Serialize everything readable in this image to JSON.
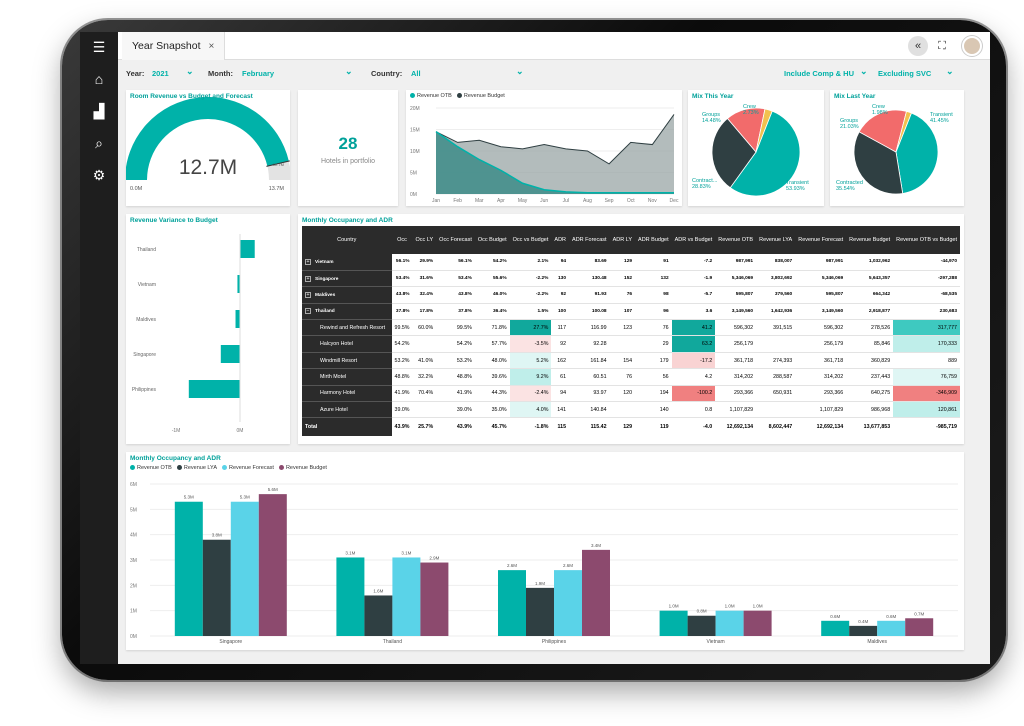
{
  "tab": {
    "title": "Year Snapshot",
    "close": "×"
  },
  "topbar": {
    "collapse": "«",
    "expand": "⛶"
  },
  "filters": {
    "year_label": "Year:",
    "year_value": "2021",
    "month_label": "Month:",
    "month_value": "February",
    "country_label": "Country:",
    "country_value": "All",
    "comp_value": "Include Comp & HU",
    "svc_value": "Excluding SVC"
  },
  "gauge": {
    "title": "Room Revenue vs Budget and Forecast",
    "value_label": "12.7M",
    "min_label": "0.0M",
    "max_label": "13.7M",
    "marker_label": "12.7M",
    "value": 12.7,
    "max": 13.7,
    "color": "#00b2a9"
  },
  "kpi": {
    "value": "28",
    "label": "Hotels in portfolio"
  },
  "area": {
    "legend": [
      "Revenue OTB",
      "Revenue Budget"
    ],
    "yticks": [
      "20M",
      "15M",
      "10M",
      "5M",
      "0M"
    ],
    "months": [
      "Jan",
      "Feb",
      "Mar",
      "Apr",
      "May",
      "Jun",
      "Jul",
      "Aug",
      "Sep",
      "Oct",
      "Nov",
      "Dec"
    ]
  },
  "mix_this": {
    "title": "Mix This Year",
    "labels": [
      {
        "name": "Crew",
        "pct": "2.73%"
      },
      {
        "name": "Groups",
        "pct": "14.48%"
      },
      {
        "name": "Contract...",
        "pct": "28.83%"
      },
      {
        "name": "Transient",
        "pct": "53.93%"
      }
    ],
    "slices": [
      53.93,
      28.83,
      14.48,
      2.73
    ]
  },
  "mix_last": {
    "title": "Mix Last Year",
    "labels": [
      {
        "name": "Crew",
        "pct": "1.98%"
      },
      {
        "name": "Transient",
        "pct": "41.45%"
      },
      {
        "name": "Groups",
        "pct": "21.03%"
      },
      {
        "name": "Contracted",
        "pct": "35.54%"
      }
    ],
    "slices": [
      41.45,
      35.54,
      21.03,
      1.98
    ]
  },
  "variance": {
    "title": "Revenue Variance to Budget",
    "countries": [
      "Thailand",
      "Vietnam",
      "Maldives",
      "Singapore",
      "Philippines"
    ],
    "xticks": [
      "-1M",
      "0M"
    ]
  },
  "table": {
    "title": "Monthly Occupancy and ADR",
    "headers": [
      "Country",
      "Occ",
      "Occ LY",
      "Occ Forecast",
      "Occ Budget",
      "Occ vs Budget",
      "ADR",
      "ADR Forecast",
      "ADR LY",
      "ADR Budget",
      "ADR vs Budget",
      "Revenue OTB",
      "Revenue LYA",
      "Revenue Forecast",
      "Revenue Budget",
      "Revenue OTB vs Budget"
    ],
    "rows": [
      {
        "type": "parent",
        "icon": "+",
        "cells": [
          "Vietnam",
          "56.1%",
          "29.9%",
          "56.1%",
          "54.2%",
          "2.1%",
          "94",
          "83.69",
          "129",
          "91",
          "-7.2",
          "987,991",
          "838,007",
          "987,991",
          "1,032,962",
          "-44,970"
        ]
      },
      {
        "type": "parent",
        "icon": "+",
        "cells": [
          "Singapore",
          "53.4%",
          "31.6%",
          "53.4%",
          "55.6%",
          "-2.2%",
          "130",
          "130.48",
          "152",
          "132",
          "-1.9",
          "5,346,069",
          "3,802,692",
          "5,346,069",
          "5,643,357",
          "-297,288"
        ]
      },
      {
        "type": "parent",
        "icon": "+",
        "cells": [
          "Maldives",
          "43.8%",
          "32.4%",
          "43.8%",
          "46.0%",
          "-2.2%",
          "92",
          "91.93",
          "76",
          "98",
          "-5.7",
          "595,807",
          "379,560",
          "595,807",
          "664,342",
          "-68,535"
        ]
      },
      {
        "type": "parent",
        "icon": "−",
        "cells": [
          "Thailand",
          "37.8%",
          "17.8%",
          "37.8%",
          "36.4%",
          "1.5%",
          "100",
          "100.08",
          "107",
          "96",
          "3.6",
          "3,149,560",
          "1,642,936",
          "3,149,560",
          "2,918,877",
          "230,683"
        ]
      },
      {
        "type": "child",
        "cells": [
          "Rewind and Refresh Resort",
          "99.5%",
          "60.0%",
          "99.5%",
          "71.8%",
          "27.7%",
          "117",
          "116.99",
          "123",
          "76",
          "41.2",
          "596,302",
          "391,515",
          "596,302",
          "278,526",
          "317,777"
        ],
        "hl": {
          "5": "#11a89c",
          "10": "#11a89c",
          "15": "#3ec9c0"
        }
      },
      {
        "type": "child",
        "cells": [
          "Halcyon Hotel",
          "54.2%",
          "",
          "54.2%",
          "57.7%",
          "-3.5%",
          "92",
          "92.28",
          "",
          "29",
          "63.2",
          "256,179",
          "",
          "256,179",
          "85,846",
          "170,333"
        ],
        "hl": {
          "5": "#fbe3e3",
          "10": "#11a89c",
          "15": "#bfeeea"
        }
      },
      {
        "type": "child",
        "cells": [
          "Windmill Resort",
          "53.2%",
          "41.0%",
          "53.2%",
          "48.0%",
          "5.2%",
          "162",
          "161.84",
          "154",
          "179",
          "-17.2",
          "361,718",
          "274,393",
          "361,718",
          "360,829",
          "889"
        ],
        "hl": {
          "5": "#dff6f4",
          "10": "#f9d3d3"
        }
      },
      {
        "type": "child",
        "cells": [
          "Mirth Motel",
          "48.8%",
          "32.2%",
          "48.8%",
          "39.6%",
          "9.2%",
          "61",
          "60.51",
          "76",
          "56",
          "4.2",
          "314,202",
          "288,587",
          "314,202",
          "237,443",
          "76,759"
        ],
        "hl": {
          "5": "#bfeeea",
          "15": "#dff6f4"
        }
      },
      {
        "type": "child",
        "cells": [
          "Harmony Hotel",
          "41.9%",
          "70.4%",
          "41.9%",
          "44.3%",
          "-2.4%",
          "94",
          "93.97",
          "120",
          "194",
          "-100.2",
          "293,366",
          "650,931",
          "293,366",
          "640,275",
          "-346,909"
        ],
        "hl": {
          "5": "#fbe3e3",
          "10": "#f08080",
          "15": "#f08080"
        }
      },
      {
        "type": "child",
        "cells": [
          "Azure Hotel",
          "39.0%",
          "",
          "39.0%",
          "35.0%",
          "4.0%",
          "141",
          "140.84",
          "",
          "140",
          "0.8",
          "1,107,829",
          "",
          "1,107,829",
          "986,968",
          "120,861"
        ],
        "hl": {
          "5": "#dff6f4",
          "15": "#bfeeea"
        }
      },
      {
        "type": "total",
        "cells": [
          "Total",
          "43.9%",
          "25.7%",
          "43.9%",
          "45.7%",
          "-1.8%",
          "115",
          "115.42",
          "129",
          "119",
          "-4.0",
          "12,692,134",
          "8,602,447",
          "12,692,134",
          "13,677,853",
          "-985,719"
        ]
      }
    ]
  },
  "bars": {
    "title": "Monthly Occupancy and ADR",
    "legend": [
      "Revenue OTB",
      "Revenue LYA",
      "Revenue Forecast",
      "Revenue Budget"
    ],
    "colors": [
      "#00b2a9",
      "#2f3f42",
      "#5ad3e8",
      "#8c4a6e"
    ],
    "yticks": [
      "6M",
      "5M",
      "4M",
      "3M",
      "2M",
      "1M",
      "0M"
    ]
  },
  "chart_data": [
    {
      "type": "bar",
      "title": "Monthly Occupancy and ADR",
      "categories": [
        "Singapore",
        "Thailand",
        "Philippines",
        "Vietnam",
        "Maldives"
      ],
      "ylim": [
        0,
        6
      ],
      "series": [
        {
          "name": "Revenue OTB",
          "values": [
            5.3,
            3.1,
            2.6,
            1.0,
            0.6
          ],
          "labels": [
            "5.3M",
            "3.1M",
            "2.6M",
            "1.0M",
            "0.6M"
          ]
        },
        {
          "name": "Revenue LYA",
          "values": [
            3.8,
            1.6,
            1.9,
            0.8,
            0.4
          ],
          "labels": [
            "3.8M",
            "1.6M",
            "1.9M",
            "0.8M",
            "0.4M"
          ]
        },
        {
          "name": "Revenue Forecast",
          "values": [
            5.3,
            3.1,
            2.6,
            1.0,
            0.6
          ],
          "labels": [
            "5.3M",
            "3.1M",
            "2.6M",
            "1.0M",
            "0.6M"
          ]
        },
        {
          "name": "Revenue Budget",
          "values": [
            5.6,
            2.9,
            3.4,
            1.0,
            0.7
          ],
          "labels": [
            "5.6M",
            "2.9M",
            "3.4M",
            "1.0M",
            "0.7M"
          ]
        }
      ]
    },
    {
      "type": "area",
      "x": [
        "Jan",
        "Feb",
        "Mar",
        "Apr",
        "May",
        "Jun",
        "Jul",
        "Aug",
        "Sep",
        "Oct",
        "Nov",
        "Dec"
      ],
      "ylim": [
        0,
        20
      ],
      "series": [
        {
          "name": "Revenue OTB",
          "values": [
            14.5,
            11,
            8,
            5.5,
            2.5,
            1,
            0.5,
            0.3,
            0.3,
            0.3,
            0.3,
            0.3
          ]
        },
        {
          "name": "Revenue Budget",
          "values": [
            14.5,
            12,
            12.5,
            11,
            10.5,
            11.5,
            10.5,
            10,
            7,
            12,
            11.5,
            18.5
          ]
        }
      ]
    },
    {
      "type": "bar",
      "title": "Revenue Variance to Budget",
      "categories": [
        "Thailand",
        "Vietnam",
        "Maldives",
        "Singapore",
        "Philippines"
      ],
      "values": [
        0.23,
        -0.04,
        -0.07,
        -0.3,
        -0.8
      ]
    }
  ]
}
